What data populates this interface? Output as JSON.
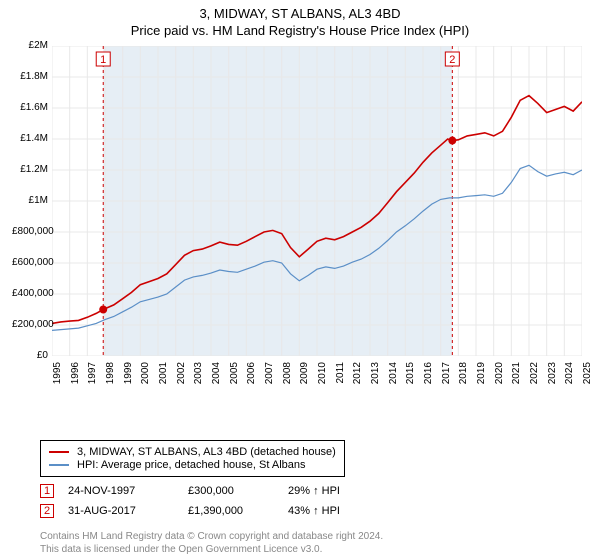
{
  "title_line1": "3, MIDWAY, ST ALBANS, AL3 4BD",
  "title_line2": "Price paid vs. HM Land Registry's House Price Index (HPI)",
  "chart": {
    "type": "line",
    "background_color": "#ffffff",
    "shaded_band_color": "#e6eef5",
    "grid_color": "#e8e8e8",
    "ylabel_prefix": "£",
    "ylim": [
      0,
      2000000
    ],
    "ytick_step": 200000,
    "ytick_labels": [
      "£0",
      "£200,000",
      "£400,000",
      "£600,000",
      "£800,000",
      "£1M",
      "£1.2M",
      "£1.4M",
      "£1.6M",
      "£1.8M",
      "£2M"
    ],
    "xlim": [
      1995,
      2025
    ],
    "xtick_step": 1,
    "xtick_labels": [
      "1995",
      "1996",
      "1997",
      "1998",
      "1999",
      "2000",
      "2001",
      "2002",
      "2003",
      "2004",
      "2005",
      "2006",
      "2007",
      "2008",
      "2009",
      "2010",
      "2011",
      "2012",
      "2013",
      "2014",
      "2015",
      "2016",
      "2017",
      "2018",
      "2019",
      "2020",
      "2021",
      "2022",
      "2023",
      "2024",
      "2025"
    ],
    "series": [
      {
        "id": "subject",
        "label": "3, MIDWAY, ST ALBANS, AL3 4BD (detached house)",
        "color": "#cc0000",
        "line_width": 1.6,
        "data": [
          [
            1995,
            210000
          ],
          [
            1995.5,
            220000
          ],
          [
            1996,
            225000
          ],
          [
            1996.5,
            230000
          ],
          [
            1997,
            250000
          ],
          [
            1997.5,
            275000
          ],
          [
            1997.9,
            300000
          ],
          [
            1998.5,
            330000
          ],
          [
            1999,
            370000
          ],
          [
            1999.5,
            410000
          ],
          [
            2000,
            460000
          ],
          [
            2000.5,
            480000
          ],
          [
            2001,
            500000
          ],
          [
            2001.5,
            530000
          ],
          [
            2002,
            590000
          ],
          [
            2002.5,
            650000
          ],
          [
            2003,
            680000
          ],
          [
            2003.5,
            690000
          ],
          [
            2004,
            710000
          ],
          [
            2004.5,
            735000
          ],
          [
            2005,
            720000
          ],
          [
            2005.5,
            715000
          ],
          [
            2006,
            740000
          ],
          [
            2006.5,
            770000
          ],
          [
            2007,
            800000
          ],
          [
            2007.5,
            810000
          ],
          [
            2008,
            790000
          ],
          [
            2008.5,
            700000
          ],
          [
            2009,
            640000
          ],
          [
            2009.5,
            690000
          ],
          [
            2010,
            740000
          ],
          [
            2010.5,
            760000
          ],
          [
            2011,
            750000
          ],
          [
            2011.5,
            770000
          ],
          [
            2012,
            800000
          ],
          [
            2012.5,
            830000
          ],
          [
            2013,
            870000
          ],
          [
            2013.5,
            920000
          ],
          [
            2014,
            990000
          ],
          [
            2014.5,
            1060000
          ],
          [
            2015,
            1120000
          ],
          [
            2015.5,
            1180000
          ],
          [
            2016,
            1250000
          ],
          [
            2016.5,
            1310000
          ],
          [
            2017,
            1360000
          ],
          [
            2017.4,
            1400000
          ],
          [
            2017.66,
            1390000
          ],
          [
            2018,
            1395000
          ],
          [
            2018.5,
            1420000
          ],
          [
            2019,
            1430000
          ],
          [
            2019.5,
            1440000
          ],
          [
            2020,
            1420000
          ],
          [
            2020.5,
            1450000
          ],
          [
            2021,
            1540000
          ],
          [
            2021.5,
            1650000
          ],
          [
            2022,
            1680000
          ],
          [
            2022.5,
            1630000
          ],
          [
            2023,
            1570000
          ],
          [
            2023.5,
            1590000
          ],
          [
            2024,
            1610000
          ],
          [
            2024.5,
            1580000
          ],
          [
            2025,
            1640000
          ]
        ]
      },
      {
        "id": "hpi",
        "label": "HPI: Average price, detached house, St Albans",
        "color": "#5b8fc7",
        "line_width": 1.2,
        "data": [
          [
            1995,
            165000
          ],
          [
            1995.5,
            170000
          ],
          [
            1996,
            175000
          ],
          [
            1996.5,
            180000
          ],
          [
            1997,
            195000
          ],
          [
            1997.5,
            210000
          ],
          [
            1998,
            235000
          ],
          [
            1998.5,
            255000
          ],
          [
            1999,
            285000
          ],
          [
            1999.5,
            315000
          ],
          [
            2000,
            350000
          ],
          [
            2000.5,
            365000
          ],
          [
            2001,
            380000
          ],
          [
            2001.5,
            400000
          ],
          [
            2002,
            445000
          ],
          [
            2002.5,
            490000
          ],
          [
            2003,
            510000
          ],
          [
            2003.5,
            520000
          ],
          [
            2004,
            535000
          ],
          [
            2004.5,
            555000
          ],
          [
            2005,
            545000
          ],
          [
            2005.5,
            540000
          ],
          [
            2006,
            560000
          ],
          [
            2006.5,
            580000
          ],
          [
            2007,
            605000
          ],
          [
            2007.5,
            615000
          ],
          [
            2008,
            600000
          ],
          [
            2008.5,
            530000
          ],
          [
            2009,
            485000
          ],
          [
            2009.5,
            520000
          ],
          [
            2010,
            560000
          ],
          [
            2010.5,
            575000
          ],
          [
            2011,
            565000
          ],
          [
            2011.5,
            580000
          ],
          [
            2012,
            605000
          ],
          [
            2012.5,
            625000
          ],
          [
            2013,
            655000
          ],
          [
            2013.5,
            695000
          ],
          [
            2014,
            745000
          ],
          [
            2014.5,
            800000
          ],
          [
            2015,
            840000
          ],
          [
            2015.5,
            885000
          ],
          [
            2016,
            935000
          ],
          [
            2016.5,
            980000
          ],
          [
            2017,
            1010000
          ],
          [
            2017.5,
            1020000
          ],
          [
            2018,
            1020000
          ],
          [
            2018.5,
            1030000
          ],
          [
            2019,
            1035000
          ],
          [
            2019.5,
            1040000
          ],
          [
            2020,
            1030000
          ],
          [
            2020.5,
            1050000
          ],
          [
            2021,
            1120000
          ],
          [
            2021.5,
            1210000
          ],
          [
            2022,
            1230000
          ],
          [
            2022.5,
            1190000
          ],
          [
            2023,
            1160000
          ],
          [
            2023.5,
            1175000
          ],
          [
            2024,
            1185000
          ],
          [
            2024.5,
            1170000
          ],
          [
            2025,
            1200000
          ]
        ]
      }
    ],
    "markers": [
      {
        "n": "1",
        "x": 1997.9,
        "y": 300000,
        "border_color": "#cc0000",
        "vline_color": "#cc0000"
      },
      {
        "n": "2",
        "x": 2017.66,
        "y": 1390000,
        "border_color": "#cc0000",
        "vline_color": "#cc0000"
      }
    ],
    "sale_points_color": "#cc0000",
    "sale_points_radius": 4
  },
  "legend": {
    "border_color": "#000000",
    "items": [
      {
        "color": "#cc0000",
        "label": "3, MIDWAY, ST ALBANS, AL3 4BD (detached house)"
      },
      {
        "color": "#5b8fc7",
        "label": "HPI: Average price, detached house, St Albans"
      }
    ]
  },
  "sales": [
    {
      "marker": "1",
      "date": "24-NOV-1997",
      "price": "£300,000",
      "pct": "29% ↑ HPI"
    },
    {
      "marker": "2",
      "date": "31-AUG-2017",
      "price": "£1,390,000",
      "pct": "43% ↑ HPI"
    }
  ],
  "footer_line1": "Contains HM Land Registry data © Crown copyright and database right 2024.",
  "footer_line2": "This data is licensed under the Open Government Licence v3.0."
}
